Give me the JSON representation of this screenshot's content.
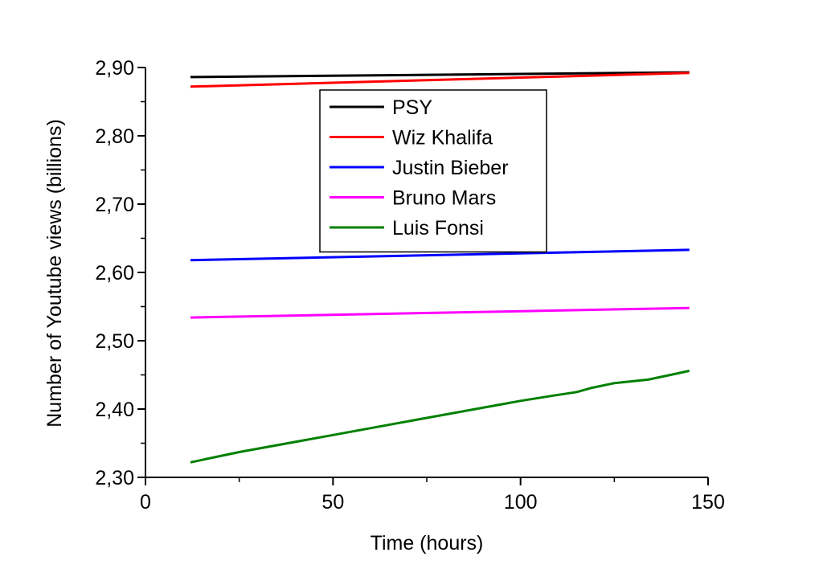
{
  "chart_data": {
    "type": "line",
    "xlabel": "Time (hours)",
    "ylabel": "Number of Youtube views (billions)",
    "xlim": [
      0,
      150
    ],
    "ylim": [
      2.3,
      2.9
    ],
    "x_ticks": [
      0,
      50,
      100,
      150
    ],
    "x_tick_labels": [
      "0",
      "50",
      "100",
      "150"
    ],
    "y_ticks": [
      2.3,
      2.4,
      2.5,
      2.6,
      2.7,
      2.8,
      2.9
    ],
    "y_tick_labels": [
      "2,30",
      "2,40",
      "2,50",
      "2,60",
      "2,70",
      "2,80",
      "2,90"
    ],
    "grid": false,
    "legend_position": "top-center",
    "series": [
      {
        "name": "PSY",
        "color": "#000000",
        "x": [
          12,
          145
        ],
        "y": [
          2.886,
          2.893
        ]
      },
      {
        "name": "Wiz Khalifa",
        "color": "#ff0000",
        "x": [
          12,
          145
        ],
        "y": [
          2.872,
          2.892
        ]
      },
      {
        "name": "Justin Bieber",
        "color": "#0000ff",
        "x": [
          12,
          145
        ],
        "y": [
          2.618,
          2.633
        ]
      },
      {
        "name": "Bruno Mars",
        "color": "#ff00ff",
        "x": [
          12,
          145
        ],
        "y": [
          2.534,
          2.548
        ]
      },
      {
        "name": "Luis Fonsi",
        "color": "#008000",
        "x": [
          12,
          25,
          50,
          75,
          100,
          108,
          115,
          119,
          125,
          134,
          140,
          145
        ],
        "y": [
          2.322,
          2.337,
          2.362,
          2.387,
          2.412,
          2.419,
          2.425,
          2.431,
          2.438,
          2.443,
          2.45,
          2.456
        ]
      }
    ]
  }
}
